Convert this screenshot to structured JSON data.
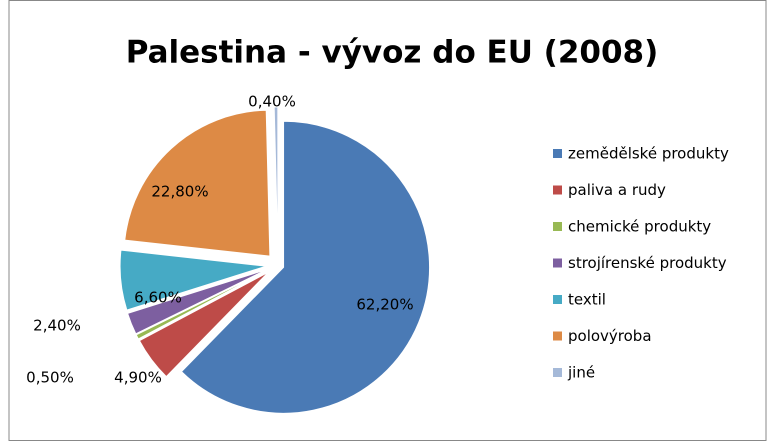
{
  "chart_data": {
    "type": "pie",
    "title": "Palestina - vývoz do EU (2008)",
    "categories": [
      "zemědělské produkty",
      "paliva a rudy",
      "chemické produkty",
      "strojírenské produkty",
      "textil",
      "polovýroba",
      "jiné"
    ],
    "values": [
      62.2,
      4.9,
      0.5,
      2.4,
      6.6,
      22.8,
      0.4
    ],
    "value_labels": [
      "62,20%",
      "4,90%",
      "0,50%",
      "2,40%",
      "6,60%",
      "22,80%",
      "0,40%"
    ],
    "colors": [
      "#4a7ab5",
      "#be4b48",
      "#98b954",
      "#7d5fa0",
      "#46aac5",
      "#dd8a45",
      "#a5b9d8"
    ],
    "legend": "right"
  }
}
